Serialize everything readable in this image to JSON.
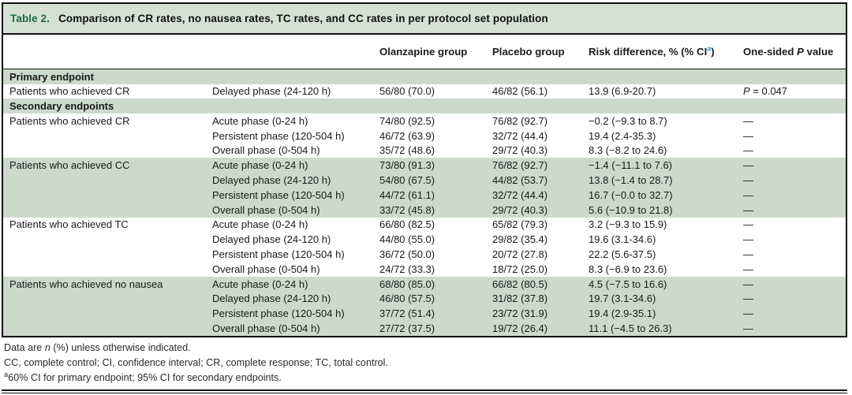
{
  "colors": {
    "caption_label_green": "#1c6b49",
    "row_shade_green": "#cdd9cc",
    "caption_bar_green": "#d6e1d5",
    "superscript_teal": "#2f9ec4"
  },
  "caption": {
    "label": "Table 2.",
    "text": "Comparison of CR rates, no nausea rates, TC rates, and CC rates in per protocol set population"
  },
  "header": {
    "col_olanzapine": "Olanzapine group",
    "col_placebo": "Placebo group",
    "risk_pre": "Risk difference, % (% CI",
    "risk_sup": "a",
    "risk_close": ")",
    "p_pre": "One-sided ",
    "p_var": "P",
    "p_post": " value"
  },
  "sections": [
    {
      "header": "Primary endpoint",
      "groups": [
        {
          "label": "Patients who achieved CR",
          "shaded": false,
          "rows": [
            {
              "phase": "Delayed phase (24-120 h)",
              "olz": "56/80 (70.0)",
              "pbo": "46/82 (56.1)",
              "risk": "13.9 (6.9-20.7)",
              "p_var": "P",
              "p_text": " = 0.047"
            }
          ]
        }
      ]
    },
    {
      "header": "Secondary endpoints",
      "groups": [
        {
          "label": "Patients who achieved CR",
          "shaded": false,
          "rows": [
            {
              "phase": "Acute phase (0-24 h)",
              "olz": "74/80 (92.5)",
              "pbo": "76/82 (92.7)",
              "risk": "−0.2 (−9.3 to 8.7)",
              "p": "—"
            },
            {
              "phase": "Persistent phase (120-504 h)",
              "olz": "46/72 (63.9)",
              "pbo": "32/72 (44.4)",
              "risk": "19.4 (2.4-35.3)",
              "p": "—"
            },
            {
              "phase": "Overall phase (0-504 h)",
              "olz": "35/72 (48.6)",
              "pbo": "29/72 (40.3)",
              "risk": "8.3 (−8.2 to 24.6)",
              "p": "—"
            }
          ]
        },
        {
          "label": "Patients who achieved CC",
          "shaded": true,
          "rows": [
            {
              "phase": "Acute phase (0-24 h)",
              "olz": "73/80 (91.3)",
              "pbo": "76/82 (92.7)",
              "risk": "−1.4 (−11.1 to 7.6)",
              "p": "—"
            },
            {
              "phase": "Delayed phase (24-120 h)",
              "olz": "54/80 (67.5)",
              "pbo": "44/82 (53.7)",
              "risk": "13.8 (−1.4 to 28.7)",
              "p": "—"
            },
            {
              "phase": "Persistent phase (120-504 h)",
              "olz": "44/72 (61.1)",
              "pbo": "32/72 (44.4)",
              "risk": "16.7 (−0.0 to 32.7)",
              "p": "—"
            },
            {
              "phase": "Overall phase (0-504 h)",
              "olz": "33/72 (45.8)",
              "pbo": "29/72 (40.3)",
              "risk": "5.6 (−10.9 to 21.8)",
              "p": "—"
            }
          ]
        },
        {
          "label": "Patients who achieved TC",
          "shaded": false,
          "rows": [
            {
              "phase": "Acute phase (0-24 h)",
              "olz": "66/80 (82.5)",
              "pbo": "65/82 (79.3)",
              "risk": "3.2 (−9.3 to 15.9)",
              "p": "—"
            },
            {
              "phase": "Delayed phase (24-120 h)",
              "olz": "44/80 (55.0)",
              "pbo": "29/82 (35.4)",
              "risk": "19.6 (3.1-34.6)",
              "p": "—"
            },
            {
              "phase": "Persistent phase (120-504 h)",
              "olz": "36/72 (50.0)",
              "pbo": "20/72 (27.8)",
              "risk": "22.2 (5.6-37.5)",
              "p": "—"
            },
            {
              "phase": "Overall phase (0-504 h)",
              "olz": "24/72 (33.3)",
              "pbo": "18/72 (25.0)",
              "risk": "8.3 (−6.9 to 23.6)",
              "p": "—"
            }
          ]
        },
        {
          "label": "Patients who achieved no nausea",
          "shaded": true,
          "rows": [
            {
              "phase": "Acute phase (0-24 h)",
              "olz": "68/80 (85.0)",
              "pbo": "66/82 (80.5)",
              "risk": "4.5 (−7.5 to 16.6)",
              "p": "—"
            },
            {
              "phase": "Delayed phase (24-120 h)",
              "olz": "46/80 (57.5)",
              "pbo": "31/82 (37.8)",
              "risk": "19.7 (3.1-34.6)",
              "p": "—"
            },
            {
              "phase": "Persistent phase (120-504 h)",
              "olz": "37/72 (51.4)",
              "pbo": "23/72 (31.9)",
              "risk": "19.4 (2.9-35.1)",
              "p": "—"
            },
            {
              "phase": "Overall phase (0-504 h)",
              "olz": "27/72 (37.5)",
              "pbo": "19/72 (26.4)",
              "risk": "11.1 (−4.5 to 26.3)",
              "p": "—"
            }
          ]
        }
      ]
    }
  ],
  "footnotes": {
    "fn1_pre": "Data are ",
    "fn1_var": "n",
    "fn1_post": " (%) unless otherwise indicated.",
    "fn2": "CC, complete control; CI, confidence interval; CR, complete response; TC, total control.",
    "fn3_sup": "a",
    "fn3_text": "60% CI for primary endpoint; 95% CI for secondary endpoints."
  }
}
